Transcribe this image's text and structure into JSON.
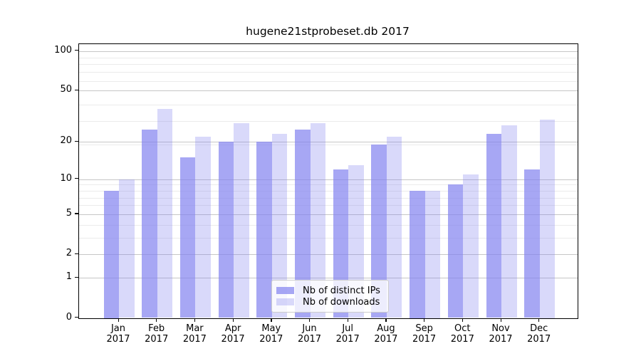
{
  "title": "hugene21stprobeset.db 2017",
  "chart_data": {
    "type": "bar",
    "categories": [
      "Jan",
      "Feb",
      "Mar",
      "Apr",
      "May",
      "Jun",
      "Jul",
      "Aug",
      "Sep",
      "Oct",
      "Nov",
      "Dec"
    ],
    "category_year_line": "2017",
    "series": [
      {
        "name": "Nb of distinct IPs",
        "color": "rgba(130,130,240,0.7)",
        "values": [
          8,
          25,
          15,
          20,
          20,
          25,
          12,
          19,
          8,
          9,
          23,
          12
        ]
      },
      {
        "name": "Nb of downloads",
        "color": "rgba(130,130,240,0.3)",
        "values": [
          10,
          36,
          22,
          28,
          23,
          28,
          13,
          22,
          8,
          11,
          27,
          30
        ]
      }
    ],
    "yaxis": {
      "scale": "log10(1+value)",
      "tick_values": [
        100,
        50,
        20,
        10,
        5,
        2,
        1,
        0
      ],
      "minor_grid_w": [
        4,
        5,
        7,
        8,
        9,
        10,
        20,
        30,
        40,
        60,
        70,
        80,
        90
      ],
      "ylim": [
        0,
        110
      ]
    },
    "legend_position": "lower center",
    "grid": "both"
  },
  "colors": {
    "bar_base": "#8282f0",
    "grid_major": "#c6c6c6",
    "grid_minor": "#ebebeb",
    "axis": "#000000",
    "legend_border": "#cccccc"
  }
}
